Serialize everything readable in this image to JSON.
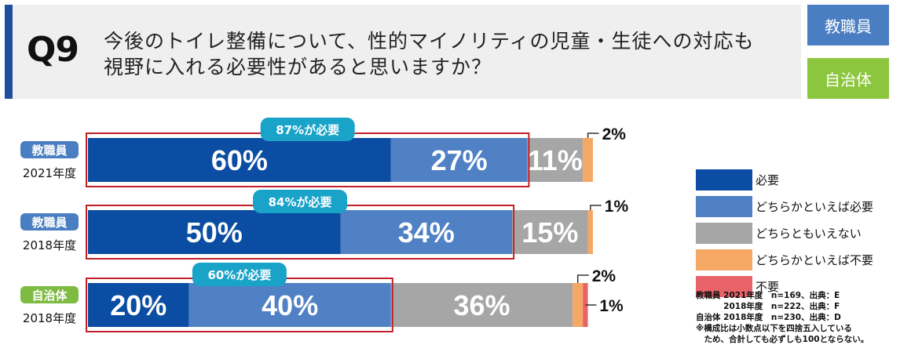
{
  "header": {
    "qnum": "Q9",
    "question_line1": "今後のトイレ整備について、性的マイノリティの児童・生徒への対応も",
    "question_line2": "視野に入れる必要性があると思いますか？",
    "tag_teacher": "教職員",
    "tag_gov": "自治体"
  },
  "colors": {
    "need": "#0b4da2",
    "somewhat_need": "#4f81c4",
    "neither": "#a6a6a6",
    "somewhat_unneeded": "#f5a863",
    "unneeded": "#e8636a",
    "badge": "#1aa3c9",
    "highlight_box": "#c0202a",
    "group_teacher": "#4a7ec2",
    "group_gov": "#7dbb42"
  },
  "chart_data": {
    "type": "bar",
    "orientation": "horizontal",
    "stacked": true,
    "xlim": [
      0,
      100
    ],
    "categories": [
      {
        "group": "教職員",
        "year": "2021年度"
      },
      {
        "group": "教職員",
        "year": "2018年度"
      },
      {
        "group": "自治体",
        "year": "2018年度"
      }
    ],
    "series": [
      {
        "name": "必要",
        "values": [
          60,
          50,
          20
        ]
      },
      {
        "name": "どちらかといえば必要",
        "values": [
          27,
          34,
          40
        ]
      },
      {
        "name": "どちらともいえない",
        "values": [
          11,
          15,
          36
        ]
      },
      {
        "name": "どちらかといえば不要",
        "values": [
          2,
          1,
          2
        ]
      },
      {
        "name": "不要",
        "values": [
          0,
          0,
          1
        ]
      }
    ],
    "data_labels": [
      [
        "60%",
        "27%",
        "11%",
        "2%",
        ""
      ],
      [
        "50%",
        "34%",
        "15%",
        "1%",
        ""
      ],
      [
        "20%",
        "40%",
        "36%",
        "2%",
        "1%"
      ]
    ],
    "badges": [
      "87%が必要",
      "84%が必要",
      "60%が必要"
    ],
    "badge_values": [
      87,
      84,
      60
    ],
    "legend_position": "right"
  },
  "legend": [
    "必要",
    "どちらかといえば必要",
    "どちらともいえない",
    "どちらかといえば不要",
    "不要"
  ],
  "notes": [
    "教職員 2021年度　n=169、出典：E",
    "　　　 2018年度　n=222、出典：F",
    "自治体 2018年度　n=230、出典：D",
    "※構成比は小数点以下を四捨五入している",
    "　ため、合計しても必ずしも100とならない。"
  ]
}
